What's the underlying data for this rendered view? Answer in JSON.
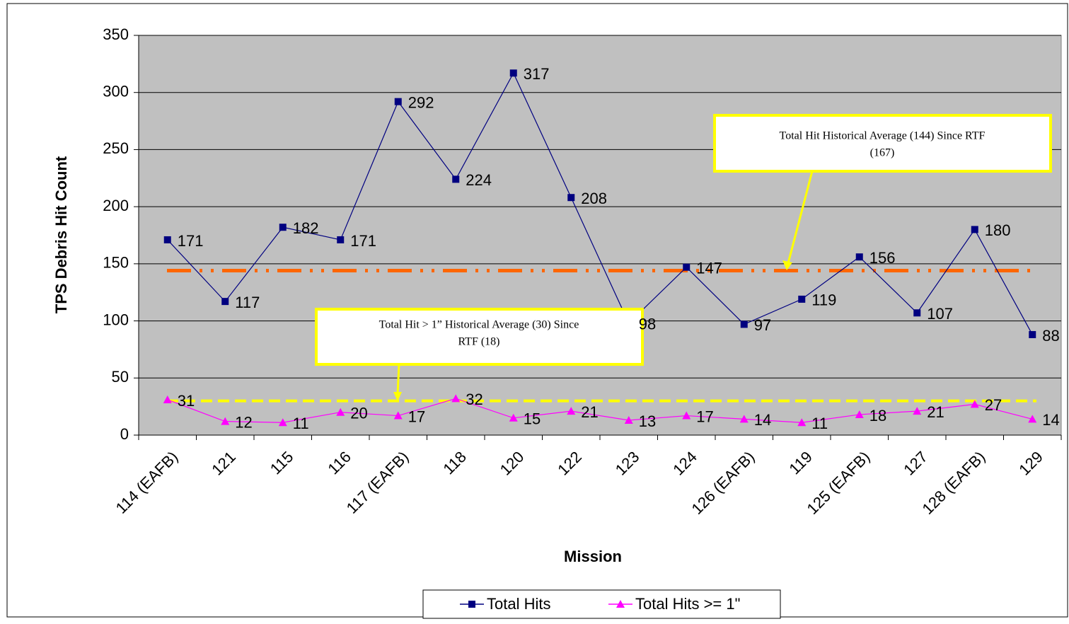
{
  "chart_data": {
    "type": "line",
    "categories": [
      "114 (EAFB)",
      "121",
      "115",
      "116",
      "117 (EAFB)",
      "118",
      "120",
      "122",
      "123",
      "124",
      "126 (EAFB)",
      "119",
      "125 (EAFB)",
      "127",
      "128 (EAFB)",
      "129"
    ],
    "series": [
      {
        "name": "Total Hits",
        "color": "#000080",
        "marker": "square",
        "values": [
          171,
          117,
          182,
          171,
          292,
          224,
          317,
          208,
          98,
          147,
          97,
          119,
          156,
          107,
          180,
          88
        ]
      },
      {
        "name": "Total Hits >= 1\"",
        "color": "#ff00ff",
        "marker": "triangle",
        "values": [
          31,
          12,
          11,
          20,
          17,
          32,
          15,
          21,
          13,
          17,
          14,
          11,
          18,
          21,
          27,
          14
        ]
      }
    ],
    "x_label": "Mission",
    "y_label": "TPS Debris Hit Count",
    "ylim": [
      0,
      350
    ],
    "yticks": [
      0,
      50,
      100,
      150,
      200,
      250,
      300,
      350
    ],
    "grid": true,
    "reference_lines": [
      {
        "value": 144,
        "color": "#ff6600",
        "style": "dash-dot-dot"
      },
      {
        "value": 30,
        "color": "#ffff00",
        "style": "dash"
      }
    ],
    "annotations": [
      {
        "lines": [
          "Total Hit Historical Average (144) Since RTF",
          "(167)"
        ]
      },
      {
        "lines": [
          "Total Hit > 1” Historical Average (30) Since",
          "RTF (18)"
        ]
      }
    ],
    "legend": "bottom"
  }
}
